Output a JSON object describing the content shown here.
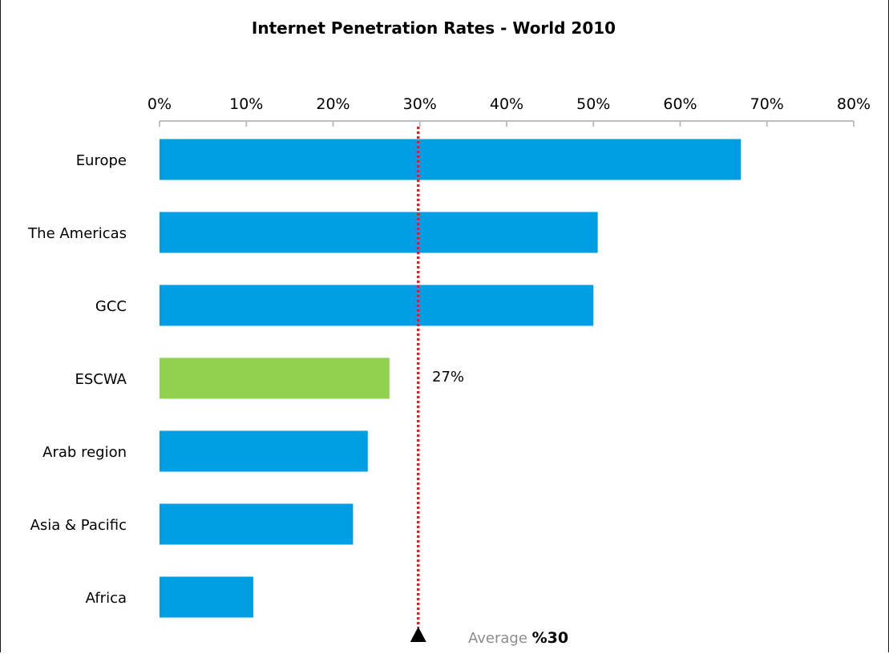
{
  "chart_data": {
    "type": "bar",
    "orientation": "horizontal",
    "title": "Internet Penetration Rates - World 2010",
    "categories": [
      "Europe",
      "The Americas",
      "GCC",
      "ESCWA",
      "Arab region",
      "Asia & Pacific",
      "Africa"
    ],
    "values": [
      67,
      50.5,
      50,
      26.5,
      24,
      22.3,
      10.8
    ],
    "bar_colors": [
      "#009fe3",
      "#009fe3",
      "#009fe3",
      "#92d050",
      "#009fe3",
      "#009fe3",
      "#009fe3"
    ],
    "xlim": [
      0,
      80
    ],
    "x_ticks": [
      0,
      10,
      20,
      30,
      40,
      50,
      60,
      70,
      80
    ],
    "x_tick_labels": [
      "0%",
      "10%",
      "20%",
      "30%",
      "40%",
      "50%",
      "60%",
      "70%",
      "80%"
    ],
    "x_axis_position": "top",
    "data_labels": [
      {
        "category": "ESCWA",
        "text": "27%"
      }
    ],
    "reference_line": {
      "value": 30,
      "color": "#e02020",
      "style": "dotted",
      "label_prefix": "Average",
      "label_value": "%30"
    },
    "grid": false,
    "legend": "none"
  }
}
